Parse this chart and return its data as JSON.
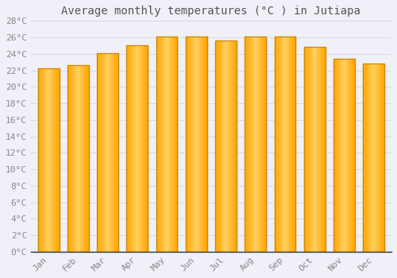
{
  "title": "Average monthly temperatures (°C ) in Jutiapa",
  "months": [
    "Jan",
    "Feb",
    "Mar",
    "Apr",
    "May",
    "Jun",
    "Jul",
    "Aug",
    "Sep",
    "Oct",
    "Nov",
    "Dec"
  ],
  "values": [
    22.2,
    22.6,
    24.1,
    25.0,
    26.1,
    26.1,
    25.6,
    26.1,
    26.1,
    24.8,
    23.4,
    22.8
  ],
  "bar_color_main": "#FFA500",
  "bar_color_light": "#FFD060",
  "bar_color_edge": "#C8860A",
  "ylim": [
    0,
    28
  ],
  "ytick_step": 2,
  "background_color": "#f0f0f8",
  "plot_bg_color": "#f0f0f8",
  "grid_color": "#d8d8e8",
  "title_fontsize": 10,
  "tick_fontsize": 8,
  "font_family": "monospace",
  "title_color": "#555555",
  "tick_color": "#888888"
}
